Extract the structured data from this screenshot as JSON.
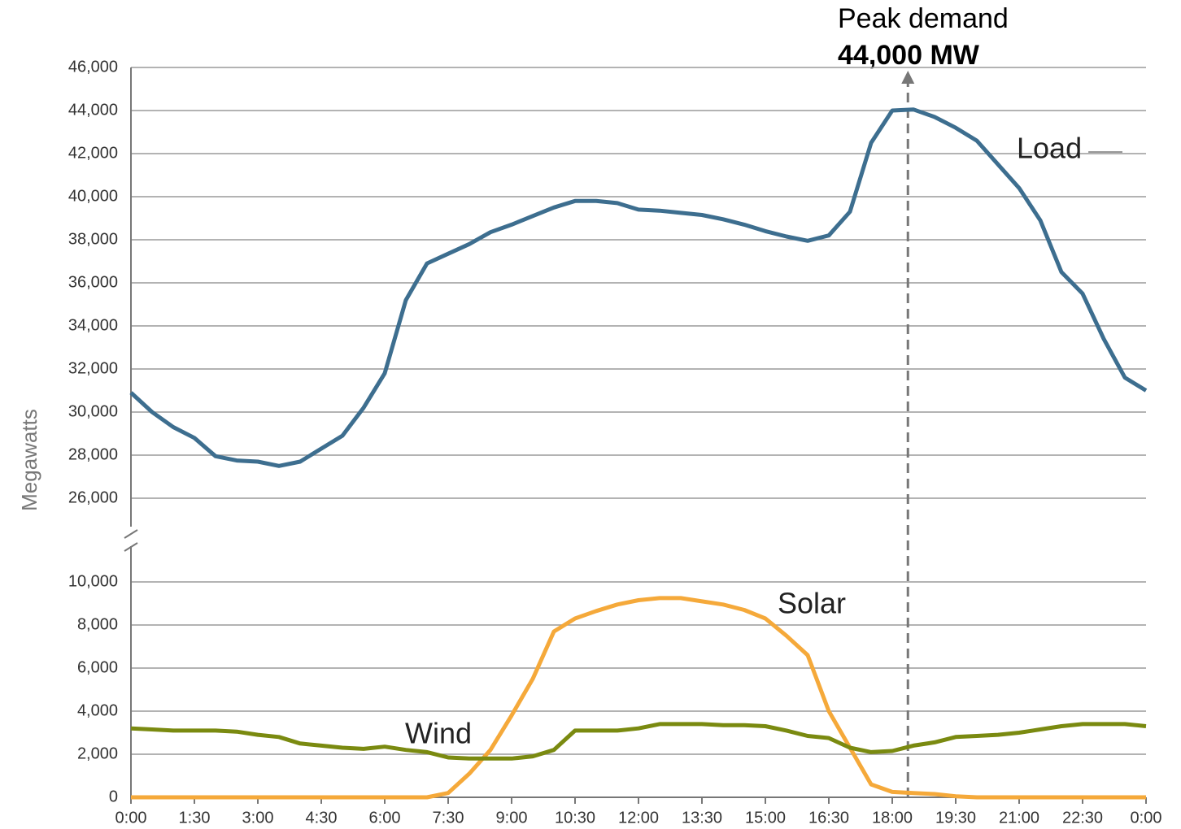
{
  "chart_data": {
    "type": "line",
    "y_label": "Megawatts",
    "x": [
      0,
      0.5,
      1,
      1.5,
      2,
      2.5,
      3,
      3.5,
      4,
      4.5,
      5,
      5.5,
      6,
      6.5,
      7,
      7.5,
      8,
      8.5,
      9,
      9.5,
      10,
      10.5,
      11,
      11.5,
      12,
      12.5,
      13,
      13.5,
      14,
      14.5,
      15,
      15.5,
      16,
      16.5,
      17,
      17.5,
      18,
      18.5,
      19,
      19.5,
      20,
      20.5,
      21,
      21.5,
      22,
      22.5,
      23,
      23.5,
      24
    ],
    "series": [
      {
        "name": "Load",
        "color": "#3d6e8f",
        "axis": "y2",
        "values": [
          30900,
          30000,
          29300,
          28800,
          27950,
          27750,
          27700,
          27500,
          27700,
          28300,
          28900,
          30200,
          31800,
          35200,
          36900,
          37350,
          37800,
          38350,
          38700,
          39100,
          39500,
          39800,
          39800,
          39700,
          39400,
          39350,
          39250,
          39150,
          38950,
          38700,
          38400,
          38150,
          37950,
          38200,
          39300,
          42500,
          44000,
          44050,
          43700,
          43200,
          42600,
          41500,
          40400,
          38900,
          36500,
          35500,
          33400,
          31600,
          31000
        ]
      },
      {
        "name": "Solar",
        "color": "#f5a93a",
        "values": [
          0,
          0,
          0,
          0,
          0,
          0,
          0,
          0,
          0,
          0,
          0,
          0,
          0,
          0,
          0,
          200,
          1100,
          2200,
          3800,
          5500,
          7700,
          8300,
          8650,
          8950,
          9150,
          9250,
          9250,
          9100,
          8950,
          8700,
          8300,
          7500,
          6600,
          4000,
          2300,
          600,
          250,
          200,
          150,
          50,
          0,
          0,
          0,
          0,
          0,
          0,
          0,
          0,
          0
        ]
      },
      {
        "name": "Wind",
        "color": "#7a8a10",
        "values": [
          3200,
          3150,
          3100,
          3100,
          3100,
          3050,
          2900,
          2800,
          2500,
          2400,
          2300,
          2250,
          2350,
          2200,
          2100,
          1850,
          1800,
          1800,
          1800,
          1900,
          2200,
          3100,
          3100,
          3100,
          3200,
          3400,
          3400,
          3400,
          3350,
          3350,
          3300,
          3100,
          2850,
          2750,
          2300,
          2100,
          2150,
          2400,
          2550,
          2800,
          2850,
          2900,
          3000,
          3150,
          3300,
          3400,
          3400,
          3400,
          3300
        ]
      }
    ],
    "xlim": [
      0,
      24
    ],
    "xticks": [
      {
        "value": 0,
        "label": "0:00"
      },
      {
        "value": 1.5,
        "label": "1:30"
      },
      {
        "value": 3,
        "label": "3:00"
      },
      {
        "value": 4.5,
        "label": "4:30"
      },
      {
        "value": 6,
        "label": "6:00"
      },
      {
        "value": 7.5,
        "label": "7:30"
      },
      {
        "value": 9,
        "label": "9:00"
      },
      {
        "value": 10.5,
        "label": "10:30"
      },
      {
        "value": 12,
        "label": "12:00"
      },
      {
        "value": 13.5,
        "label": "13:30"
      },
      {
        "value": 15,
        "label": "15:00"
      },
      {
        "value": 16.5,
        "label": "16:30"
      },
      {
        "value": 18,
        "label": "18:00"
      },
      {
        "value": 19.5,
        "label": "19:30"
      },
      {
        "value": 21,
        "label": "21:00"
      },
      {
        "value": 22.5,
        "label": "22:30"
      },
      {
        "value": 24,
        "label": "0:00"
      }
    ],
    "ylim": [
      0,
      10000
    ],
    "yticks": [
      0,
      {
        "value": 2000,
        "label": "2,000"
      },
      {
        "value": 4000,
        "label": "4,000"
      },
      {
        "value": 6000,
        "label": "6,000"
      },
      {
        "value": 8000,
        "label": "8,000"
      },
      {
        "value": 10000,
        "label": "10,000"
      }
    ],
    "y2lim": [
      26000,
      46000
    ],
    "y2ticks": [
      {
        "value": 26000,
        "label": "26,000"
      },
      {
        "value": 28000,
        "label": "28,000"
      },
      {
        "value": 30000,
        "label": "30,000"
      },
      {
        "value": 32000,
        "label": "32,000"
      },
      {
        "value": 34000,
        "label": "34,000"
      },
      {
        "value": 36000,
        "label": "36,000"
      },
      {
        "value": 38000,
        "label": "38,000"
      },
      {
        "value": 40000,
        "label": "40,000"
      },
      {
        "value": 42000,
        "label": "42,000"
      },
      {
        "value": 44000,
        "label": "44,000"
      },
      {
        "value": 46000,
        "label": "46,000"
      }
    ],
    "grid": true,
    "annotation": {
      "text": "Peak demand",
      "value_text": "44,000 MW",
      "x": 18.37
    }
  }
}
